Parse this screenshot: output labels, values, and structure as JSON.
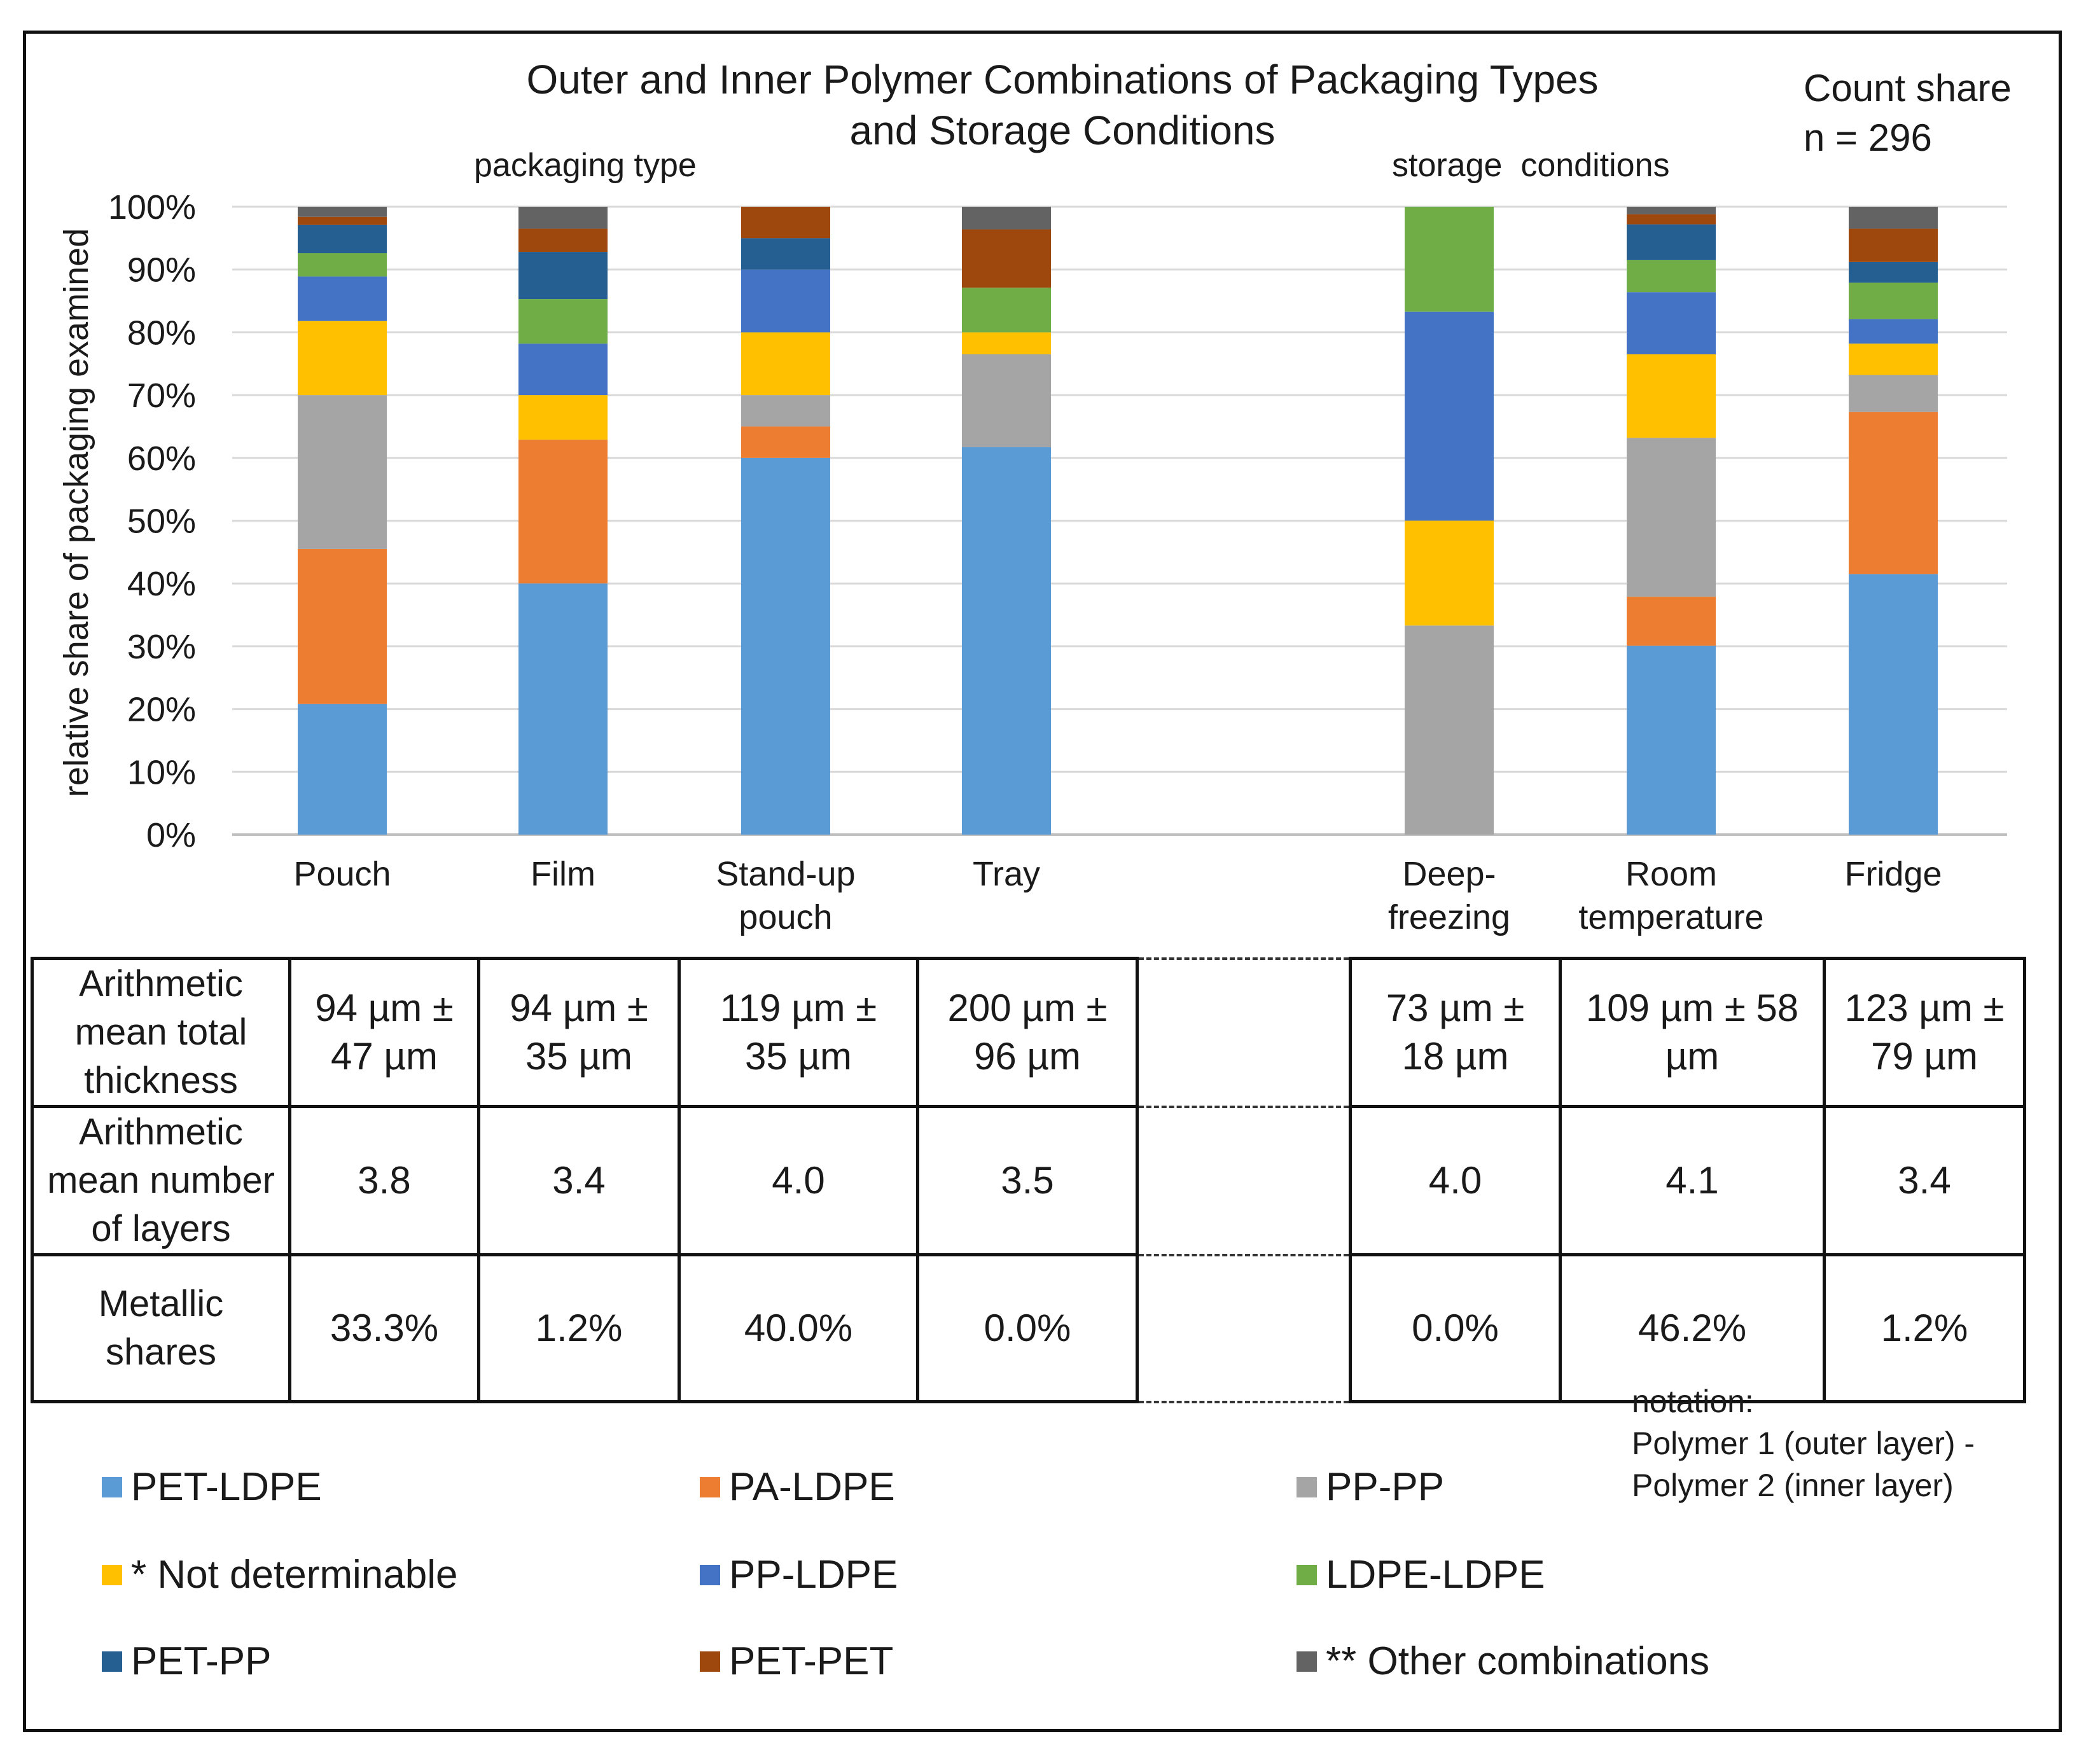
{
  "chart_data": {
    "type": "stacked-bar-100",
    "title": "Outer and Inner Polymer Combinations of Packaging Types and Storage Conditions",
    "annotation_count_share": "Count share",
    "annotation_n": "n = 296",
    "group_labels": {
      "packaging": "packaging type",
      "storage": "storage  conditions"
    },
    "ylabel": "relative share of packaging examined",
    "ylim": [
      0,
      100
    ],
    "y_ticks": [
      "0%",
      "10%",
      "20%",
      "30%",
      "40%",
      "50%",
      "60%",
      "70%",
      "80%",
      "90%",
      "100%"
    ],
    "categories": [
      "Pouch",
      "Film",
      "Stand-up pouch",
      "Tray",
      "Deep-freezing",
      "Room temperature",
      "Fridge"
    ],
    "series": [
      {
        "name": "PET-LDPE",
        "color": "#5B9BD5",
        "values": [
          20.8,
          40.0,
          60.0,
          61.7,
          0.0,
          30.1,
          41.5
        ]
      },
      {
        "name": "PA-LDPE",
        "color": "#ED7D31",
        "values": [
          24.7,
          22.9,
          5.0,
          0.0,
          0.0,
          7.8,
          25.8
        ]
      },
      {
        "name": "PP-PP",
        "color": "#A5A5A5",
        "values": [
          24.5,
          0.0,
          5.0,
          14.8,
          33.3,
          25.3,
          5.9
        ]
      },
      {
        "name": "* Not determinable",
        "color": "#FFC000",
        "values": [
          11.8,
          7.1,
          10.0,
          3.5,
          16.7,
          13.3,
          5.0
        ]
      },
      {
        "name": "PP-LDPE",
        "color": "#4472C4",
        "values": [
          7.1,
          8.2,
          10.0,
          0.0,
          33.3,
          9.9,
          3.9
        ]
      },
      {
        "name": "LDPE-LDPE",
        "color": "#70AD47",
        "values": [
          3.7,
          7.1,
          0.0,
          7.1,
          16.7,
          5.1,
          5.8
        ]
      },
      {
        "name": "PET-PP",
        "color": "#255E91",
        "values": [
          4.5,
          7.5,
          5.0,
          0.0,
          0.0,
          5.7,
          3.3
        ]
      },
      {
        "name": "PET-PET",
        "color": "#9E480E",
        "values": [
          1.3,
          3.7,
          5.0,
          9.3,
          0.0,
          1.6,
          5.3
        ]
      },
      {
        "name": "** Other combinations",
        "color": "#636363",
        "values": [
          1.6,
          3.5,
          0.0,
          3.6,
          0.0,
          1.2,
          3.5
        ]
      }
    ]
  },
  "table": {
    "row_headers": [
      [
        "Arithmetic",
        "mean total",
        "thickness"
      ],
      [
        "Arithmetic",
        "mean number",
        "of layers"
      ],
      [
        "Metallic",
        "shares"
      ]
    ],
    "thickness": [
      [
        "94 µm ±",
        "47 µm"
      ],
      [
        "94 µm ±",
        "35 µm"
      ],
      [
        "119 µm ±",
        "35 µm"
      ],
      [
        "200 µm ±",
        "96 µm"
      ],
      [
        "73 µm ±",
        "18 µm"
      ],
      [
        "109 µm ± 58",
        "µm"
      ],
      [
        "123 µm ±",
        "79 µm"
      ]
    ],
    "layers": [
      "3.8",
      "3.4",
      "4.0",
      "3.5",
      "4.0",
      "4.1",
      "3.4"
    ],
    "metallic": [
      "33.3%",
      "1.2%",
      "40.0%",
      "0.0%",
      "0.0%",
      "46.2%",
      "1.2%"
    ]
  },
  "notation": [
    "notation:",
    "Polymer 1 (outer layer) -",
    "Polymer 2 (inner layer)"
  ]
}
